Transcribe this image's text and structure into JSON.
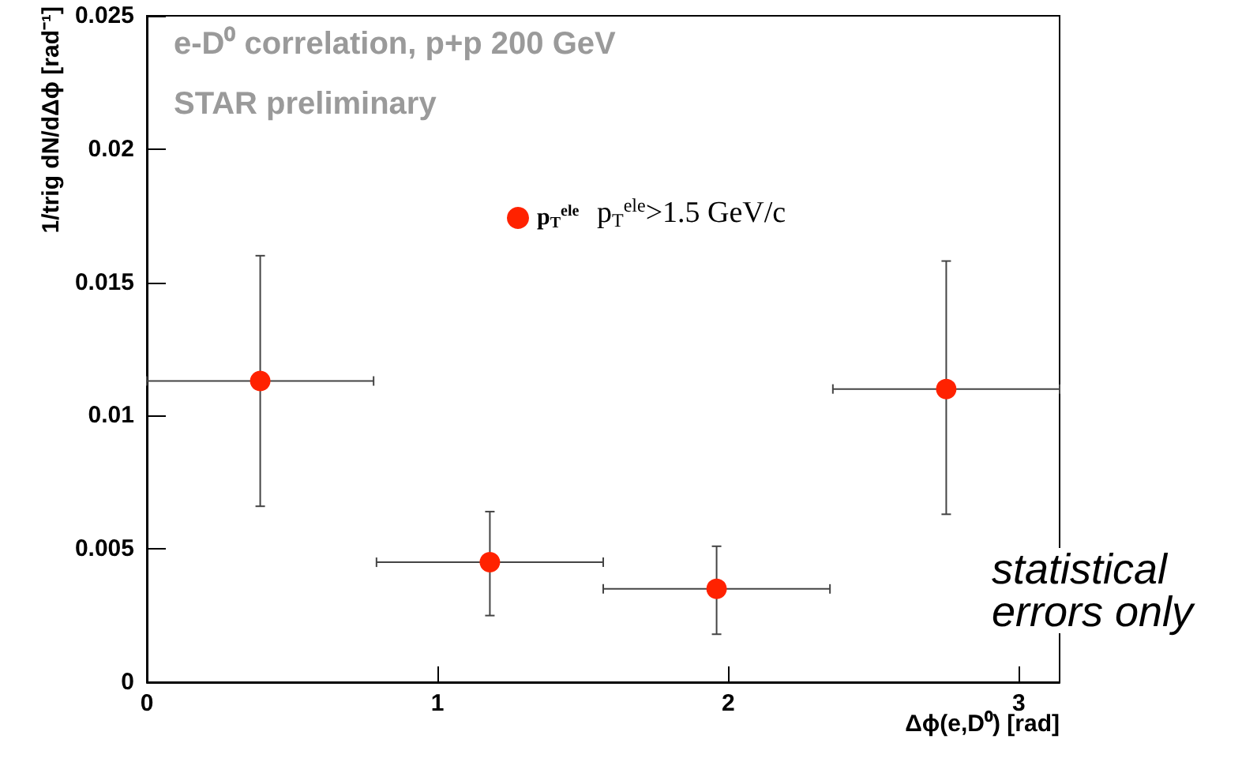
{
  "chart_data": {
    "type": "scatter",
    "xlabel": "Δϕ(e,D⁰) [rad]",
    "ylabel": "1/trig dN/dΔϕ [rad⁻¹]",
    "annotations": [
      "e-D⁰ correlation, p+p 200 GeV",
      "STAR preliminary",
      "p$_{T}$$^{ele}$>1.5 GeV/c",
      "statistical errors only"
    ],
    "x": [
      0.39,
      1.18,
      1.96,
      2.75
    ],
    "series": [
      {
        "name": "p$_{T}$$^{ele}$",
        "color": "#ff2200",
        "values": [
          0.0113,
          0.0045,
          0.0035,
          0.011
        ],
        "errors": [
          [
            0.0066,
            0.016
          ],
          [
            0.0025,
            0.0064
          ],
          [
            0.0018,
            0.0051
          ],
          [
            0.0063,
            0.0158
          ]
        ],
        "xerrors": [
          0.39,
          0.39,
          0.39,
          0.39
        ]
      }
    ],
    "xlim": [
      0,
      3.14
    ],
    "xticks": [
      0,
      1,
      2,
      3
    ],
    "ylim": [
      0,
      0.025
    ],
    "yticks": [
      0,
      0.005,
      0.01,
      0.015,
      0.02,
      0.025
    ],
    "grid": false,
    "legend": "top",
    "marker": "circle"
  }
}
